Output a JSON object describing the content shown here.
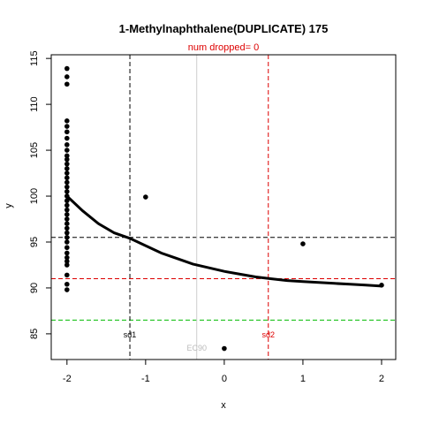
{
  "chart_data": {
    "type": "scatter",
    "title": "1-Methylnaphthalene(DUPLICATE) 175",
    "subtitle": "num dropped= 0",
    "xlabel": "x",
    "ylabel": "y",
    "xlim": [
      -2.2,
      2.18
    ],
    "ylim": [
      82.2,
      115.4
    ],
    "x_ticks": [
      -2,
      -1,
      0,
      1,
      2
    ],
    "y_ticks": [
      85,
      90,
      95,
      100,
      105,
      110,
      115
    ],
    "x_tick_labels": [
      "-2",
      "-1",
      "0",
      "1",
      "2"
    ],
    "y_tick_labels": [
      "85",
      "90",
      "95",
      "100",
      "105",
      "110",
      "115"
    ],
    "points": [
      {
        "x": -2,
        "y": 113.9
      },
      {
        "x": -2,
        "y": 113.0
      },
      {
        "x": -2,
        "y": 112.2
      },
      {
        "x": -2,
        "y": 108.2
      },
      {
        "x": -2,
        "y": 107.6
      },
      {
        "x": -2,
        "y": 107.0
      },
      {
        "x": -2,
        "y": 106.3
      },
      {
        "x": -2,
        "y": 105.6
      },
      {
        "x": -2,
        "y": 105.0
      },
      {
        "x": -2,
        "y": 104.4
      },
      {
        "x": -2,
        "y": 104.0
      },
      {
        "x": -2,
        "y": 103.5
      },
      {
        "x": -2,
        "y": 103.0
      },
      {
        "x": -2,
        "y": 102.5
      },
      {
        "x": -2,
        "y": 102.0
      },
      {
        "x": -2,
        "y": 101.5
      },
      {
        "x": -2,
        "y": 101.0
      },
      {
        "x": -2,
        "y": 100.5
      },
      {
        "x": -2,
        "y": 100.0
      },
      {
        "x": -2,
        "y": 99.5
      },
      {
        "x": -2,
        "y": 99.0
      },
      {
        "x": -2,
        "y": 98.5
      },
      {
        "x": -2,
        "y": 98.0
      },
      {
        "x": -2,
        "y": 97.5
      },
      {
        "x": -2,
        "y": 97.0
      },
      {
        "x": -2,
        "y": 96.5
      },
      {
        "x": -2,
        "y": 96.0
      },
      {
        "x": -2,
        "y": 95.5
      },
      {
        "x": -2,
        "y": 95.0
      },
      {
        "x": -2,
        "y": 94.4
      },
      {
        "x": -2,
        "y": 93.8
      },
      {
        "x": -2,
        "y": 93.3
      },
      {
        "x": -2,
        "y": 92.9
      },
      {
        "x": -2,
        "y": 92.5
      },
      {
        "x": -2,
        "y": 91.4
      },
      {
        "x": -2,
        "y": 90.4
      },
      {
        "x": -2,
        "y": 89.8
      },
      {
        "x": -1,
        "y": 99.9
      },
      {
        "x": 0,
        "y": 83.4
      },
      {
        "x": 1,
        "y": 94.8
      },
      {
        "x": 2,
        "y": 90.3
      }
    ],
    "fit_curve": {
      "x": [
        -2.0,
        -1.8,
        -1.6,
        -1.4,
        -1.2,
        -1.0,
        -0.8,
        -0.6,
        -0.4,
        -0.2,
        0.0,
        0.2,
        0.4,
        0.6,
        0.8,
        1.0,
        1.2,
        1.4,
        1.6,
        1.8,
        2.0
      ],
      "y": [
        100.0,
        98.4,
        97.0,
        96.0,
        95.4,
        94.6,
        93.8,
        93.2,
        92.6,
        92.2,
        91.8,
        91.5,
        91.2,
        91.0,
        90.8,
        90.7,
        90.6,
        90.5,
        90.4,
        90.3,
        90.2
      ]
    },
    "hlines": [
      {
        "y": 95.5,
        "color": "#000000",
        "style": "dashed"
      },
      {
        "y": 91.0,
        "color": "#dd0000",
        "style": "dashed"
      },
      {
        "y": 86.5,
        "color": "#00bb00",
        "style": "dashed"
      }
    ],
    "vlines": [
      {
        "x": -1.2,
        "color": "#000000",
        "style": "dashed",
        "label": "sd1"
      },
      {
        "x": -0.35,
        "color": "#cccccc",
        "style": "solid",
        "label": "EC90"
      },
      {
        "x": 0.56,
        "color": "#dd0000",
        "style": "dashed",
        "label": "sd2"
      }
    ],
    "grid": false
  }
}
